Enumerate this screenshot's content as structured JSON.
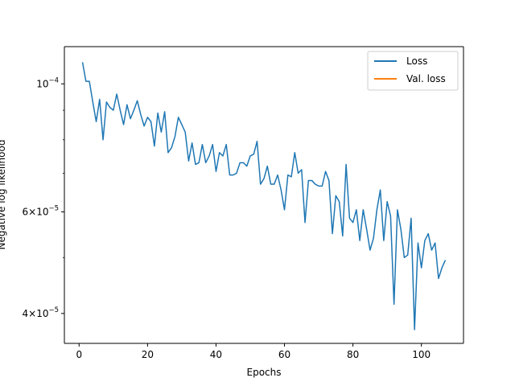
{
  "chart_data": {
    "type": "line",
    "title": "",
    "xlabel": "Epochs",
    "ylabel": "Negative log likelihood",
    "yscale": "log",
    "xlim": [
      -4.3,
      112.3
    ],
    "ylim": [
      3.55e-05,
      0.000116
    ],
    "grid": false,
    "legend_position": "top-right",
    "x_ticks": [
      {
        "value": 0,
        "label": "0"
      },
      {
        "value": 20,
        "label": "20"
      },
      {
        "value": 40,
        "label": "40"
      },
      {
        "value": 60,
        "label": "60"
      },
      {
        "value": 80,
        "label": "80"
      },
      {
        "value": 100,
        "label": "100"
      }
    ],
    "y_ticks": [
      {
        "value": 4e-05,
        "mantissa": "4",
        "base": "10",
        "exp": "−5"
      },
      {
        "value": 6e-05,
        "mantissa": "6",
        "base": "10",
        "exp": "−5"
      },
      {
        "value": 0.0001,
        "mantissa": "",
        "base": "10",
        "exp": "−4"
      }
    ],
    "series": [
      {
        "name": "Loss",
        "color": "#1f77b4",
        "x_start": 1,
        "values": [
          0.000109,
          0.000101,
          0.000101,
          9.3e-05,
          8.6e-05,
          9.4e-05,
          8e-05,
          9.3e-05,
          9.1e-05,
          9e-05,
          9.6e-05,
          9e-05,
          8.5e-05,
          9.2e-05,
          8.7e-05,
          9e-05,
          9.35e-05,
          8.85e-05,
          8.45e-05,
          8.75e-05,
          8.6e-05,
          7.8e-05,
          8.9e-05,
          8.25e-05,
          8.95e-05,
          7.6e-05,
          7.75e-05,
          8.1e-05,
          8.75e-05,
          8.5e-05,
          8.25e-05,
          7.35e-05,
          7.9e-05,
          7.25e-05,
          7.3e-05,
          7.85e-05,
          7.3e-05,
          7.5e-05,
          7.85e-05,
          7.05e-05,
          7.6e-05,
          7.5e-05,
          7.85e-05,
          6.95e-05,
          6.95e-05,
          7e-05,
          7.3e-05,
          7.3e-05,
          7.2e-05,
          7.5e-05,
          7.55e-05,
          7.95e-05,
          6.7e-05,
          6.85e-05,
          7.2e-05,
          6.7e-05,
          6.7e-05,
          6.95e-05,
          6.55e-05,
          6.05e-05,
          6.95e-05,
          6.9e-05,
          7.6e-05,
          7e-05,
          7.1e-05,
          5.75e-05,
          6.8e-05,
          6.8e-05,
          6.7e-05,
          6.65e-05,
          6.65e-05,
          7.05e-05,
          6.8e-05,
          5.5e-05,
          6.4e-05,
          6.25e-05,
          5.45e-05,
          7.25e-05,
          5.85e-05,
          5.75e-05,
          6.05e-05,
          5.35e-05,
          6.05e-05,
          5.6e-05,
          5.15e-05,
          5.4e-05,
          6.05e-05,
          6.55e-05,
          5.35e-05,
          6.25e-05,
          5.9e-05,
          4.15e-05,
          6.05e-05,
          5.6e-05,
          5e-05,
          5.05e-05,
          5.85e-05,
          3.75e-05,
          5.3e-05,
          4.8e-05,
          5.35e-05,
          5.5e-05,
          5.15e-05,
          5.3e-05,
          4.6e-05,
          4.8e-05,
          4.95e-05
        ]
      },
      {
        "name": "Val. loss",
        "color": "#ff7f0e",
        "x_start": 1,
        "values": []
      }
    ]
  }
}
